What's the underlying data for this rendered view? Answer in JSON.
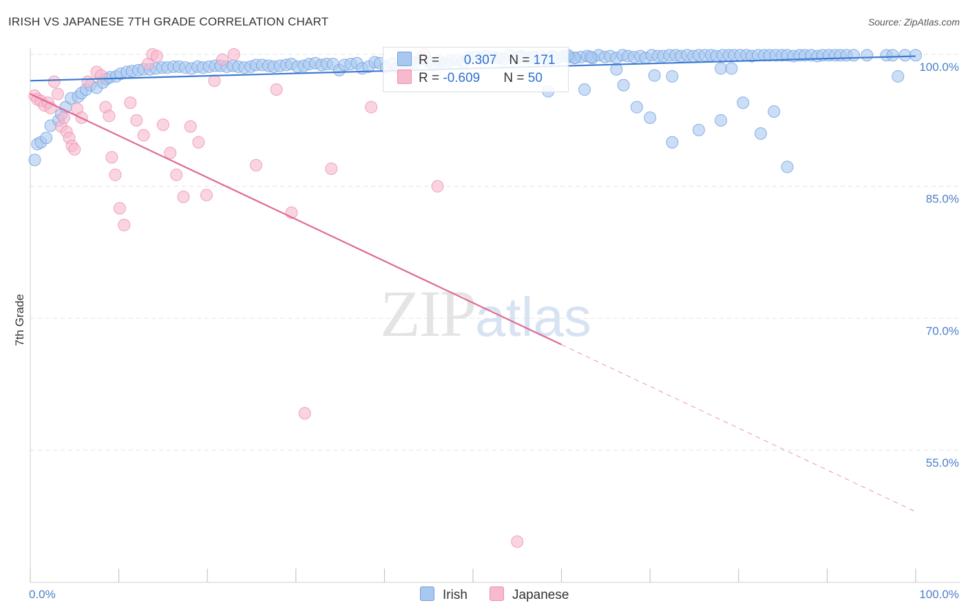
{
  "header": {
    "title": "IRISH VS JAPANESE 7TH GRADE CORRELATION CHART",
    "source": "Source: ZipAtlas.com"
  },
  "watermark": {
    "zip": "ZIP",
    "atlas": "atlas"
  },
  "legend": {
    "irish": {
      "r_label": "R = ",
      "r_value": "0.307",
      "n_label": "N = ",
      "n_value": "171"
    },
    "japanese": {
      "r_label": "R = ",
      "r_value": "-0.609",
      "n_label": "N = ",
      "n_value": "50"
    }
  },
  "bottom_legend": {
    "irish": "Irish",
    "japanese": "Japanese"
  },
  "colors": {
    "irish_fill": "#a9c8f0",
    "irish_stroke": "#6f9fde",
    "irish_line": "#3a78d0",
    "japanese_fill": "#f7b9cd",
    "japanese_stroke": "#ec8fae",
    "japanese_line": "#e06894",
    "tick_text": "#4a7fc8",
    "grid": "#e2e2e2"
  },
  "chart_data": {
    "type": "scatter",
    "title": "IRISH VS JAPANESE 7TH GRADE CORRELATION CHART",
    "xlabel": "",
    "ylabel": "7th Grade",
    "xlim": [
      0,
      100
    ],
    "ylim": [
      40,
      102
    ],
    "x_tick_labels": [
      "0.0%",
      "100.0%"
    ],
    "y_ticks": [
      100,
      85,
      70,
      55
    ],
    "y_tick_labels": [
      "100.0%",
      "85.0%",
      "70.0%",
      "55.0%"
    ],
    "grid": true,
    "legend_position": "top-center",
    "series": [
      {
        "name": "Irish",
        "r": 0.307,
        "n": 171,
        "trend": {
          "x": [
            0,
            100
          ],
          "y": [
            97.0,
            99.8
          ]
        },
        "points": [
          [
            0.5,
            88.0
          ],
          [
            0.8,
            89.8
          ],
          [
            1.2,
            90.0
          ],
          [
            1.8,
            90.5
          ],
          [
            2.3,
            91.9
          ],
          [
            3.2,
            92.5
          ],
          [
            3.5,
            93.2
          ],
          [
            4.0,
            94.0
          ],
          [
            4.6,
            95.0
          ],
          [
            5.4,
            95.2
          ],
          [
            5.8,
            95.6
          ],
          [
            6.3,
            96.0
          ],
          [
            6.8,
            96.5
          ],
          [
            7.5,
            96.2
          ],
          [
            8.2,
            96.8
          ],
          [
            8.6,
            97.2
          ],
          [
            9.0,
            97.4
          ],
          [
            9.7,
            97.5
          ],
          [
            10.2,
            97.8
          ],
          [
            10.9,
            98.0
          ],
          [
            11.5,
            98.1
          ],
          [
            12.2,
            98.2
          ],
          [
            12.8,
            98.3
          ],
          [
            13.5,
            98.3
          ],
          [
            14.2,
            98.4
          ],
          [
            14.9,
            98.5
          ],
          [
            15.5,
            98.5
          ],
          [
            16.2,
            98.6
          ],
          [
            16.8,
            98.6
          ],
          [
            17.5,
            98.5
          ],
          [
            18.2,
            98.4
          ],
          [
            18.9,
            98.6
          ],
          [
            19.5,
            98.5
          ],
          [
            20.2,
            98.6
          ],
          [
            20.9,
            98.7
          ],
          [
            21.5,
            98.7
          ],
          [
            22.2,
            98.6
          ],
          [
            22.9,
            98.7
          ],
          [
            23.5,
            98.6
          ],
          [
            24.2,
            98.5
          ],
          [
            24.9,
            98.6
          ],
          [
            25.5,
            98.8
          ],
          [
            26.2,
            98.8
          ],
          [
            26.9,
            98.7
          ],
          [
            27.5,
            98.6
          ],
          [
            28.2,
            98.7
          ],
          [
            28.9,
            98.8
          ],
          [
            29.5,
            98.9
          ],
          [
            30.2,
            98.6
          ],
          [
            30.9,
            98.7
          ],
          [
            31.5,
            98.9
          ],
          [
            32.2,
            99.0
          ],
          [
            32.9,
            98.8
          ],
          [
            33.5,
            98.9
          ],
          [
            34.2,
            98.9
          ],
          [
            34.9,
            98.2
          ],
          [
            35.5,
            98.8
          ],
          [
            36.2,
            98.9
          ],
          [
            36.9,
            99.0
          ],
          [
            37.5,
            98.4
          ],
          [
            38.2,
            98.6
          ],
          [
            38.9,
            99.1
          ],
          [
            39.5,
            99.0
          ],
          [
            40.2,
            98.5
          ],
          [
            40.9,
            99.0
          ],
          [
            41.5,
            98.5
          ],
          [
            42.2,
            99.2
          ],
          [
            42.9,
            99.0
          ],
          [
            43.5,
            99.1
          ],
          [
            44.2,
            99.5
          ],
          [
            44.9,
            99.2
          ],
          [
            45.5,
            98.8
          ],
          [
            46.2,
            99.2
          ],
          [
            46.9,
            99.0
          ],
          [
            47.5,
            99.3
          ],
          [
            48.2,
            99.4
          ],
          [
            48.9,
            99.1
          ],
          [
            49.5,
            99.6
          ],
          [
            50.2,
            99.7
          ],
          [
            50.9,
            99.6
          ],
          [
            51.5,
            99.8
          ],
          [
            52.2,
            99.7
          ],
          [
            52.9,
            99.6
          ],
          [
            53.5,
            99.5
          ],
          [
            54.2,
            99.9
          ],
          [
            54.9,
            99.6
          ],
          [
            55.5,
            99.8
          ],
          [
            56.2,
            99.6
          ],
          [
            56.9,
            99.7
          ],
          [
            57.5,
            99.8
          ],
          [
            58.2,
            99.5
          ],
          [
            58.9,
            99.7
          ],
          [
            59.5,
            99.6
          ],
          [
            60.2,
            99.8
          ],
          [
            60.9,
            99.7
          ],
          [
            61.5,
            99.6
          ],
          [
            62.2,
            99.7
          ],
          [
            62.9,
            99.8
          ],
          [
            63.5,
            99.6
          ],
          [
            64.2,
            99.9
          ],
          [
            64.9,
            99.7
          ],
          [
            65.5,
            99.8
          ],
          [
            66.2,
            99.6
          ],
          [
            66.9,
            99.9
          ],
          [
            67.5,
            99.8
          ],
          [
            68.2,
            99.7
          ],
          [
            68.9,
            99.8
          ],
          [
            69.5,
            99.6
          ],
          [
            70.2,
            99.9
          ],
          [
            70.9,
            99.8
          ],
          [
            71.5,
            99.8
          ],
          [
            72.2,
            99.9
          ],
          [
            72.9,
            99.9
          ],
          [
            73.5,
            99.8
          ],
          [
            74.2,
            99.9
          ],
          [
            74.9,
            99.8
          ],
          [
            75.5,
            99.9
          ],
          [
            76.2,
            99.9
          ],
          [
            76.9,
            99.9
          ],
          [
            77.5,
            99.8
          ],
          [
            78.2,
            99.9
          ],
          [
            78.9,
            99.9
          ],
          [
            79.5,
            99.9
          ],
          [
            80.2,
            99.9
          ],
          [
            80.9,
            99.9
          ],
          [
            81.5,
            99.8
          ],
          [
            82.2,
            99.9
          ],
          [
            82.9,
            99.9
          ],
          [
            83.5,
            99.9
          ],
          [
            84.2,
            99.9
          ],
          [
            84.9,
            99.9
          ],
          [
            85.5,
            99.9
          ],
          [
            86.2,
            99.8
          ],
          [
            86.9,
            99.9
          ],
          [
            87.5,
            99.9
          ],
          [
            88.2,
            99.9
          ],
          [
            88.9,
            99.8
          ],
          [
            89.5,
            99.9
          ],
          [
            90.2,
            99.9
          ],
          [
            90.9,
            99.9
          ],
          [
            91.5,
            99.9
          ],
          [
            92.2,
            99.9
          ],
          [
            93.0,
            99.9
          ],
          [
            94.5,
            99.9
          ],
          [
            96.7,
            99.9
          ],
          [
            98.8,
            99.9
          ],
          [
            100.0,
            99.9
          ],
          [
            58.5,
            95.8
          ],
          [
            62.6,
            96.0
          ],
          [
            67.0,
            96.5
          ],
          [
            68.5,
            94.0
          ],
          [
            70.0,
            92.8
          ],
          [
            72.5,
            90.0
          ],
          [
            75.5,
            91.4
          ],
          [
            78.0,
            92.5
          ],
          [
            80.5,
            94.5
          ],
          [
            82.5,
            91.0
          ],
          [
            84.0,
            93.5
          ],
          [
            85.5,
            87.2
          ],
          [
            70.5,
            97.6
          ],
          [
            72.5,
            97.5
          ],
          [
            66.2,
            98.3
          ],
          [
            78.0,
            98.4
          ],
          [
            79.2,
            98.4
          ],
          [
            98.0,
            97.5
          ],
          [
            97.4,
            99.9
          ],
          [
            55.2,
            99.7
          ],
          [
            61.5,
            99.6
          ],
          [
            59.0,
            99.8
          ],
          [
            63.3,
            99.7
          ],
          [
            60.7,
            99.9
          ]
        ]
      },
      {
        "name": "Japanese",
        "r": -0.609,
        "n": 50,
        "trend": {
          "x": [
            0,
            100
          ],
          "y": [
            95.5,
            48.0
          ]
        },
        "points": [
          [
            0.5,
            95.3
          ],
          [
            0.8,
            94.9
          ],
          [
            1.2,
            94.7
          ],
          [
            1.6,
            94.2
          ],
          [
            2.0,
            94.5
          ],
          [
            2.3,
            93.9
          ],
          [
            2.7,
            96.9
          ],
          [
            3.1,
            95.5
          ],
          [
            3.5,
            91.8
          ],
          [
            3.8,
            92.8
          ],
          [
            4.1,
            91.2
          ],
          [
            4.4,
            90.5
          ],
          [
            4.7,
            89.6
          ],
          [
            5.0,
            89.2
          ],
          [
            5.3,
            93.8
          ],
          [
            5.8,
            92.8
          ],
          [
            6.5,
            96.9
          ],
          [
            7.5,
            98.0
          ],
          [
            8.0,
            97.6
          ],
          [
            8.5,
            94.0
          ],
          [
            8.9,
            93.0
          ],
          [
            9.2,
            88.3
          ],
          [
            9.6,
            86.3
          ],
          [
            10.1,
            82.5
          ],
          [
            10.6,
            80.6
          ],
          [
            11.3,
            94.5
          ],
          [
            12.0,
            92.5
          ],
          [
            12.8,
            90.8
          ],
          [
            13.3,
            98.9
          ],
          [
            13.8,
            100.0
          ],
          [
            14.3,
            99.8
          ],
          [
            15.0,
            92.0
          ],
          [
            15.8,
            88.8
          ],
          [
            16.5,
            86.3
          ],
          [
            17.3,
            83.8
          ],
          [
            18.1,
            91.8
          ],
          [
            19.0,
            90.0
          ],
          [
            19.9,
            84.0
          ],
          [
            20.8,
            97.0
          ],
          [
            21.7,
            99.4
          ],
          [
            23.0,
            100.0
          ],
          [
            25.5,
            87.4
          ],
          [
            27.8,
            96.0
          ],
          [
            29.5,
            82.0
          ],
          [
            31.0,
            59.2
          ],
          [
            34.0,
            87.0
          ],
          [
            38.5,
            94.0
          ],
          [
            46.0,
            85.0
          ],
          [
            44.5,
            100.0
          ],
          [
            55.0,
            44.6
          ]
        ]
      }
    ]
  }
}
